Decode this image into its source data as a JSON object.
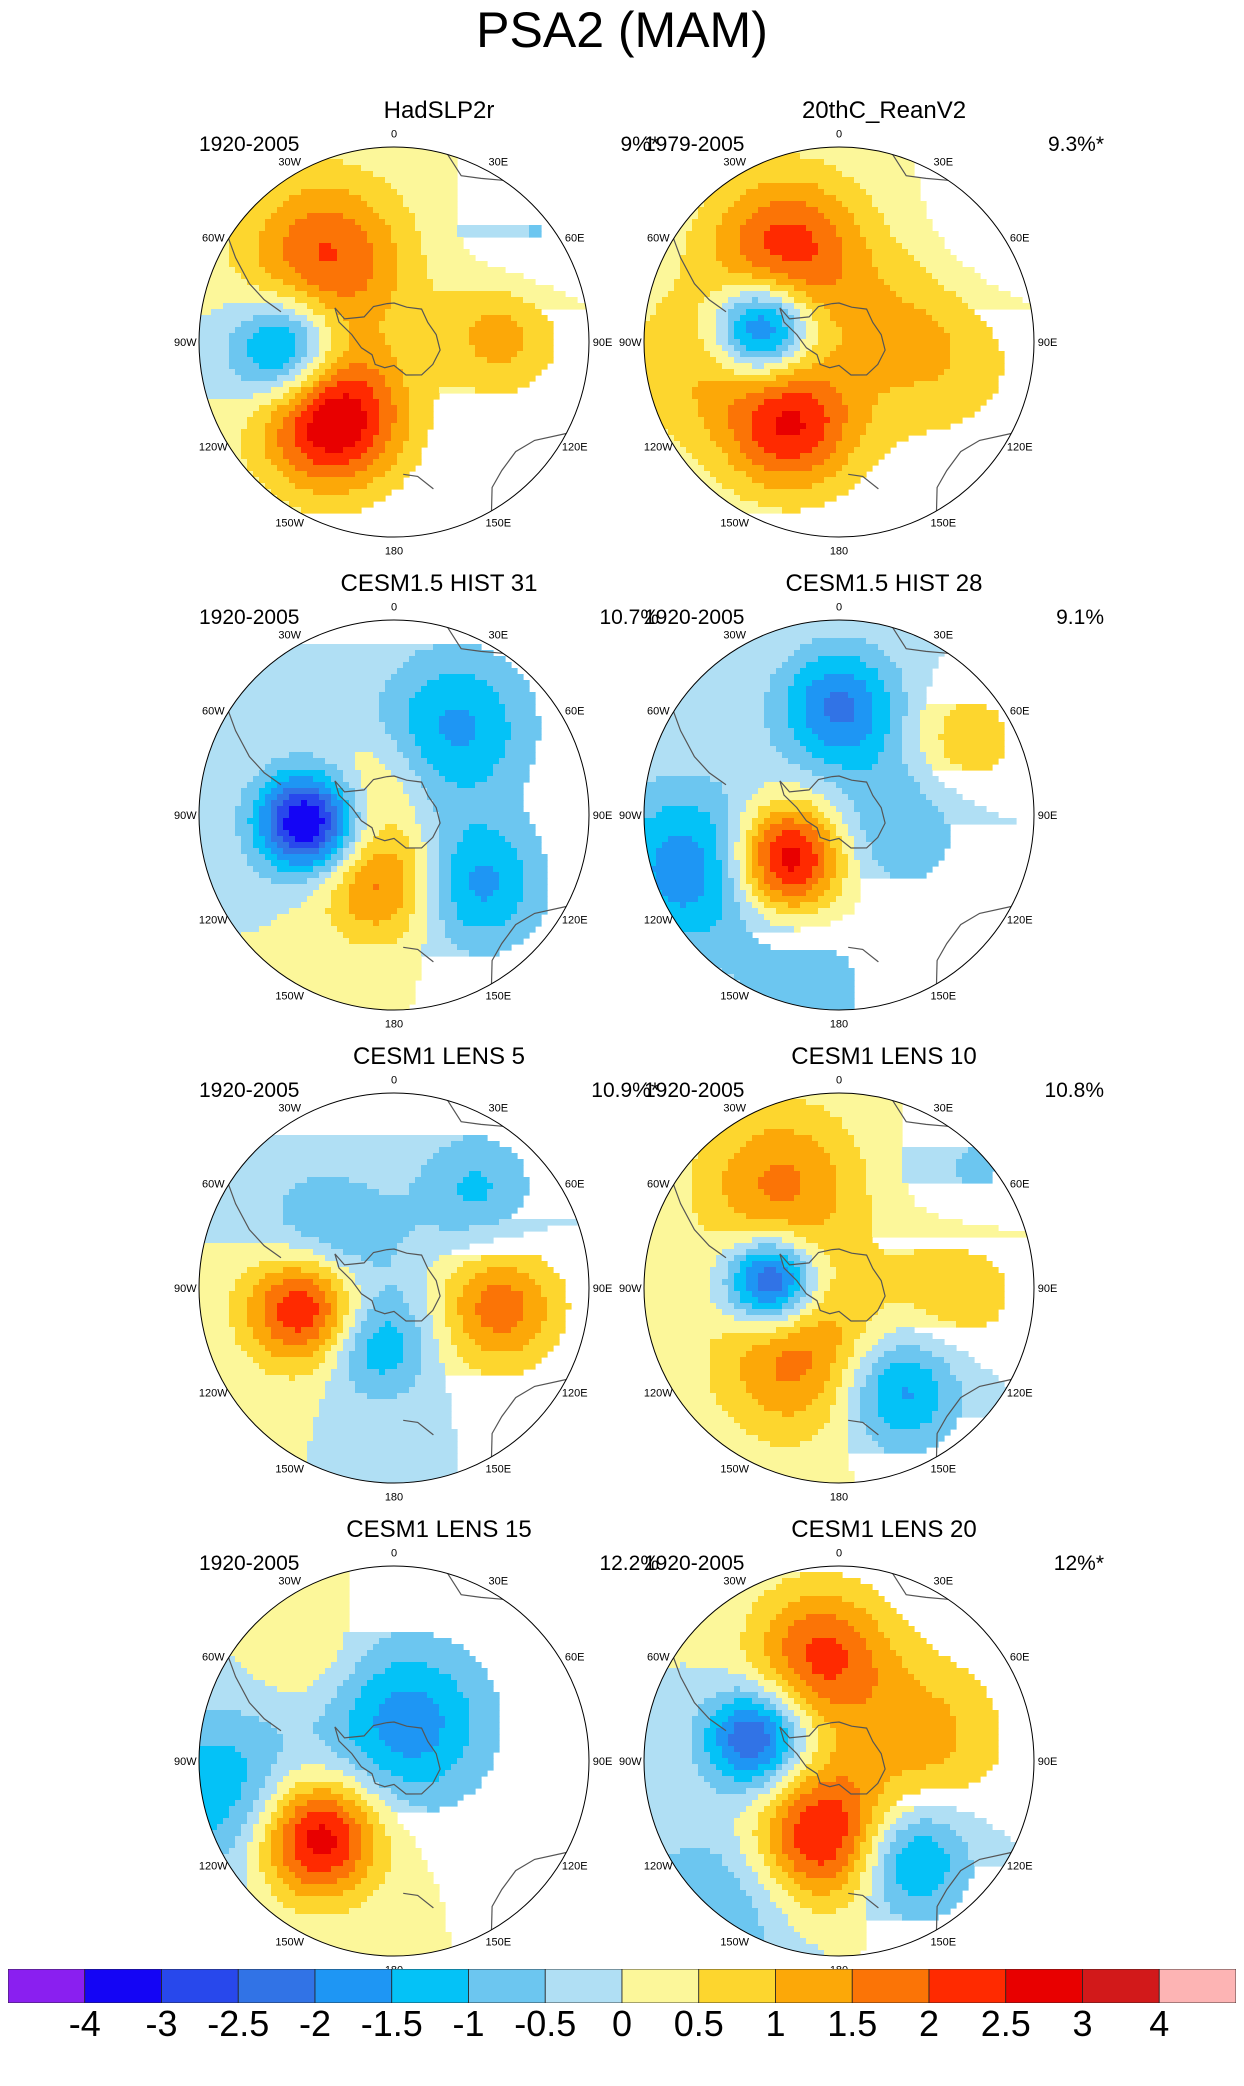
{
  "title": "PSA2 (MAM)",
  "panels": [
    {
      "name": "HadSLP2r",
      "period": "1920-2005",
      "variance": "9%*",
      "blobs": [
        [
          -40,
          0.55,
          0.3,
          2.1
        ],
        [
          -95,
          0.55,
          0.2,
          -2.7
        ],
        [
          -140,
          0.5,
          0.26,
          3.2
        ],
        [
          85,
          0.55,
          0.22,
          1.3
        ],
        [
          55,
          0.85,
          0.25,
          -0.6
        ]
      ]
    },
    {
      "name": "20thC_ReanV2",
      "period": "1979-2005",
      "variance": "9.3%*",
      "blobs": [
        [
          -30,
          0.55,
          0.28,
          2.2
        ],
        [
          -80,
          0.4,
          0.17,
          -3.1
        ],
        [
          -150,
          0.5,
          0.24,
          2.4
        ],
        [
          85,
          0.45,
          0.35,
          1.3
        ],
        [
          -100,
          0.75,
          0.3,
          0.9
        ],
        [
          60,
          0.85,
          0.3,
          -0.7
        ]
      ]
    },
    {
      "name": "CESM1.5 HIST 31",
      "period": "1920-2005",
      "variance": "10.7%",
      "blobs": [
        [
          35,
          0.55,
          0.28,
          -1.6
        ],
        [
          -95,
          0.45,
          0.18,
          -3.7
        ],
        [
          -170,
          0.35,
          0.22,
          1.8
        ],
        [
          130,
          0.55,
          0.24,
          -1.7
        ],
        [
          -30,
          0.2,
          0.18,
          0.7
        ]
      ]
    },
    {
      "name": "CESM1.5 HIST 28",
      "period": "1920-2005",
      "variance": "9.1%",
      "blobs": [
        [
          0,
          0.55,
          0.22,
          -2.1
        ],
        [
          -130,
          0.35,
          0.2,
          3.2
        ],
        [
          -110,
          0.8,
          0.3,
          -1.9
        ],
        [
          100,
          0.3,
          0.25,
          -1.0
        ],
        [
          60,
          0.75,
          0.2,
          0.9
        ],
        [
          -170,
          0.9,
          0.25,
          -0.8
        ]
      ]
    },
    {
      "name": "CESM1 LENS 5",
      "period": "1920-2005",
      "variance": "10.9%*",
      "blobs": [
        [
          -60,
          0.4,
          0.25,
          -1.6
        ],
        [
          -100,
          0.45,
          0.22,
          3.2
        ],
        [
          100,
          0.55,
          0.22,
          1.8
        ],
        [
          -160,
          0.3,
          0.2,
          -1.6
        ],
        [
          40,
          0.65,
          0.22,
          -1.1
        ]
      ]
    },
    {
      "name": "CESM1 LENS 10",
      "period": "1920-2005",
      "variance": "10.8%",
      "blobs": [
        [
          -85,
          0.35,
          0.16,
          -3.4
        ],
        [
          -30,
          0.6,
          0.3,
          1.6
        ],
        [
          150,
          0.6,
          0.22,
          -1.9
        ],
        [
          -150,
          0.4,
          0.3,
          1.8
        ],
        [
          90,
          0.6,
          0.25,
          0.9
        ],
        [
          50,
          0.9,
          0.25,
          -0.6
        ]
      ]
    },
    {
      "name": "CESM1 LENS 15",
      "period": "1920-2005",
      "variance": "12.2%",
      "blobs": [
        [
          20,
          0.2,
          0.3,
          -1.8
        ],
        [
          -135,
          0.55,
          0.22,
          3.0
        ],
        [
          -100,
          0.9,
          0.3,
          -1.4
        ],
        [
          -40,
          0.7,
          0.2,
          0.6
        ]
      ]
    },
    {
      "name": "CESM1 LENS 20",
      "period": "1920-2005",
      "variance": "12%*",
      "blobs": [
        [
          -75,
          0.45,
          0.18,
          -2.7
        ],
        [
          -10,
          0.55,
          0.25,
          2.1
        ],
        [
          -170,
          0.4,
          0.25,
          2.8
        ],
        [
          145,
          0.6,
          0.22,
          -2.0
        ],
        [
          75,
          0.45,
          0.3,
          1.2
        ],
        [
          -140,
          0.95,
          0.3,
          -1.0
        ]
      ]
    }
  ],
  "lon_labels": [
    [
      "0",
      0
    ],
    [
      "30E",
      30
    ],
    [
      "60E",
      60
    ],
    [
      "90E",
      90
    ],
    [
      "120E",
      120
    ],
    [
      "150E",
      150
    ],
    [
      "180",
      180
    ],
    [
      "150W",
      -150
    ],
    [
      "120W",
      -120
    ],
    [
      "90W",
      -90
    ],
    [
      "60W",
      -60
    ],
    [
      "30W",
      -30
    ]
  ],
  "colorbar": {
    "levels": [
      "-4",
      "-3",
      "-2.5",
      "-2",
      "-1.5",
      "-1",
      "-0.5",
      "0",
      "0.5",
      "1",
      "1.5",
      "2",
      "2.5",
      "3",
      "4"
    ],
    "colors": [
      "#8a1ff0",
      "#1405f5",
      "#2848ec",
      "#3173e6",
      "#1e96f4",
      "#04c2f7",
      "#6cc6f0",
      "#b0dff4",
      "#fcf79a",
      "#fdd62e",
      "#fca808",
      "#fb7406",
      "#ff2a00",
      "#e80000",
      "#d2191a",
      "#fdb4b4"
    ]
  }
}
